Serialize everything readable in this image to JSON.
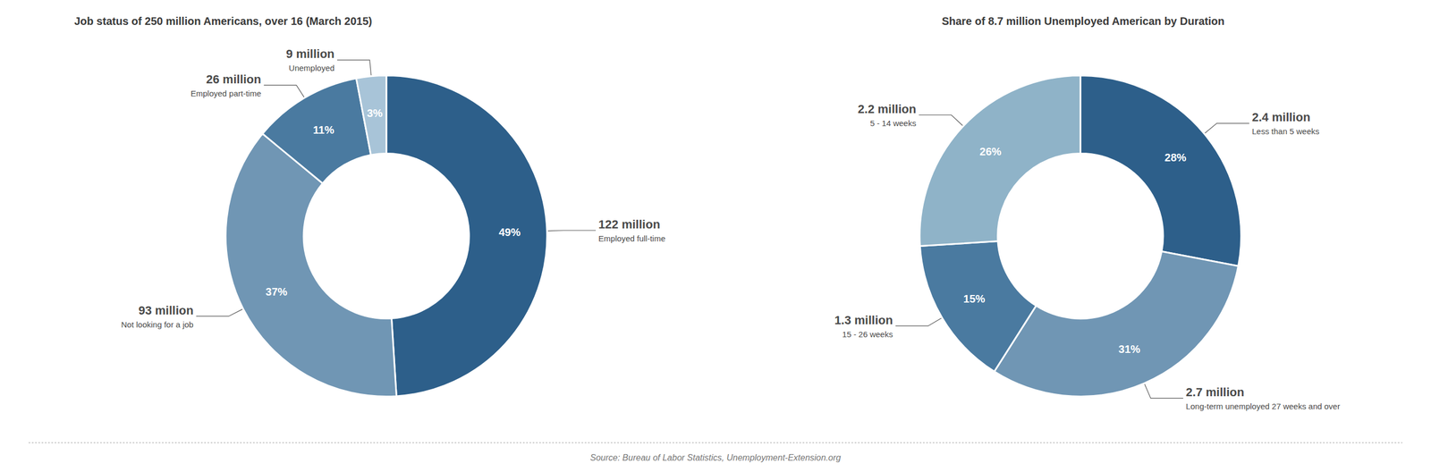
{
  "chart_data": [
    {
      "type": "pie",
      "title": "Job status of 250 million Americans, over 16 (March 2015)",
      "categories": [
        "Employed full-time",
        "Not looking for a job",
        "Employed part-time",
        "Unemployed"
      ],
      "values": [
        49,
        37,
        11,
        3
      ],
      "value_labels": [
        "49%",
        "37%",
        "11%",
        "3%"
      ],
      "annotations": [
        "122 million",
        "93 million",
        "26 million",
        "9 million"
      ],
      "colors": [
        "#2d5f8a",
        "#7096b4",
        "#4a7aa0",
        "#a8c4d8"
      ],
      "data_labels": true
    },
    {
      "type": "pie",
      "title": "Share of 8.7 million Unemployed American by Duration",
      "categories": [
        "Less than 5 weeks",
        "Long-term unemployed 27 weeks and over",
        "15 - 26 weeks",
        "5 - 14 weeks"
      ],
      "values": [
        28,
        31,
        15,
        26
      ],
      "value_labels": [
        "28%",
        "31%",
        "15%",
        "26%"
      ],
      "annotations": [
        "2.4 million",
        "2.7 million",
        "1.3 million",
        "2.2 million"
      ],
      "colors": [
        "#2d5f8a",
        "#7096b4",
        "#4a7aa0",
        "#8fb3c8"
      ],
      "data_labels": true
    }
  ],
  "source": "Source: Bureau of Labor Statistics, Unemployment-Extension.org"
}
